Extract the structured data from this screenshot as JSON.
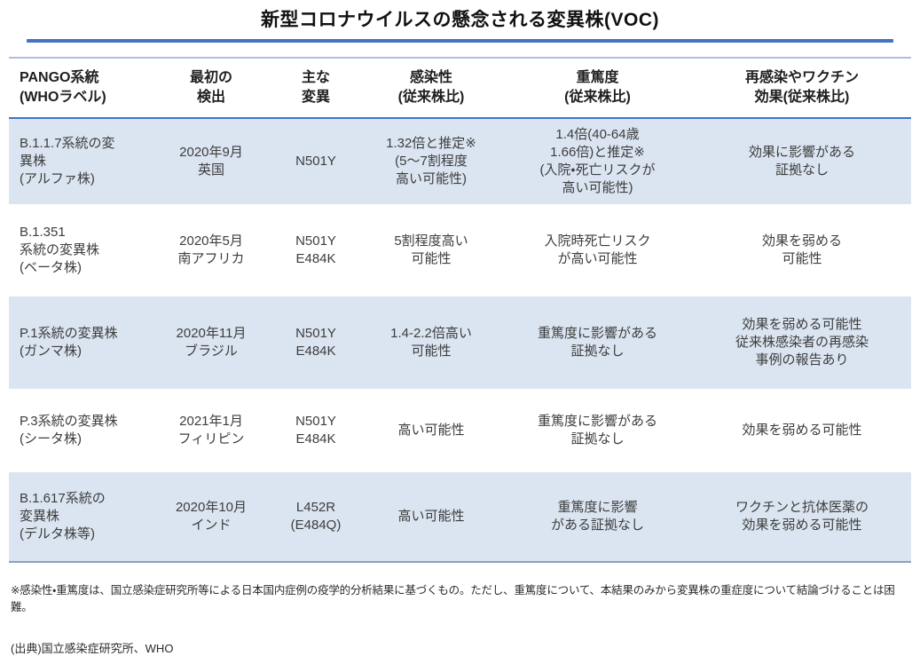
{
  "title": "新型コロナウイルスの懸念される変異株(VOC)",
  "colors": {
    "accent_blue": "#4472C4",
    "band_blue": "#DBE5F1",
    "table_top_rule": "#AEC0DC",
    "table_bottom_rule": "#8EA0BE"
  },
  "table": {
    "headers": [
      "PANGO系統\n(WHOラベル)",
      "最初の\n検出",
      "主な\n変異",
      "感染性\n(従来株比)",
      "重篤度\n(従来株比)",
      "再感染やワクチン\n効果(従来株比)"
    ],
    "rows": [
      {
        "name": "alpha",
        "cells": [
          "B.1.1.7系統の変\n異株\n(アルファ株)",
          "2020年9月\n英国",
          "N501Y",
          "1.32倍と推定※\n(5〜7割程度\n高い可能性)",
          "1.4倍(40-64歳\n1.66倍)と推定※\n(入院・死亡リスクが\n高い可能性)",
          "効果に影響がある\n証拠なし"
        ]
      },
      {
        "name": "beta",
        "cells": [
          "B.1.351\n系統の変異株\n(ベータ株)",
          "2020年5月\n南アフリカ",
          "N501Y\nE484K",
          "5割程度高い\n可能性",
          "入院時死亡リスク\nが高い可能性",
          "効果を弱める\n可能性"
        ]
      },
      {
        "name": "gamma",
        "cells": [
          "P.1系統の変異株\n(ガンマ株)",
          "2020年11月\nブラジル",
          "N501Y\nE484K",
          "1.4-2.2倍高い\n可能性",
          "重篤度に影響がある\n証拠なし",
          "効果を弱める可能性\n従来株感染者の再感染\n事例の報告あり"
        ]
      },
      {
        "name": "theta",
        "cells": [
          "P.3系統の変異株\n(シータ株)",
          "2021年1月\nフィリピン",
          "N501Y\nE484K",
          "高い可能性",
          "重篤度に影響がある\n証拠なし",
          "効果を弱める可能性"
        ]
      },
      {
        "name": "delta",
        "cells": [
          "B.1.617系統の\n変異株\n(デルタ株等)",
          "2020年10月\nインド",
          "L452R\n(E484Q)",
          "高い可能性",
          "重篤度に影響\nがある証拠なし",
          "ワクチンと抗体医薬の\n効果を弱める可能性"
        ]
      }
    ]
  },
  "footnote": "※感染性・重篤度は、国立感染症研究所等による日本国内症例の疫学的分析結果に基づくもの。ただし、重篤度について、本結果のみから変異株の重症度について結論づけることは困難。",
  "source": "(出典)国立感染症研究所、WHO"
}
